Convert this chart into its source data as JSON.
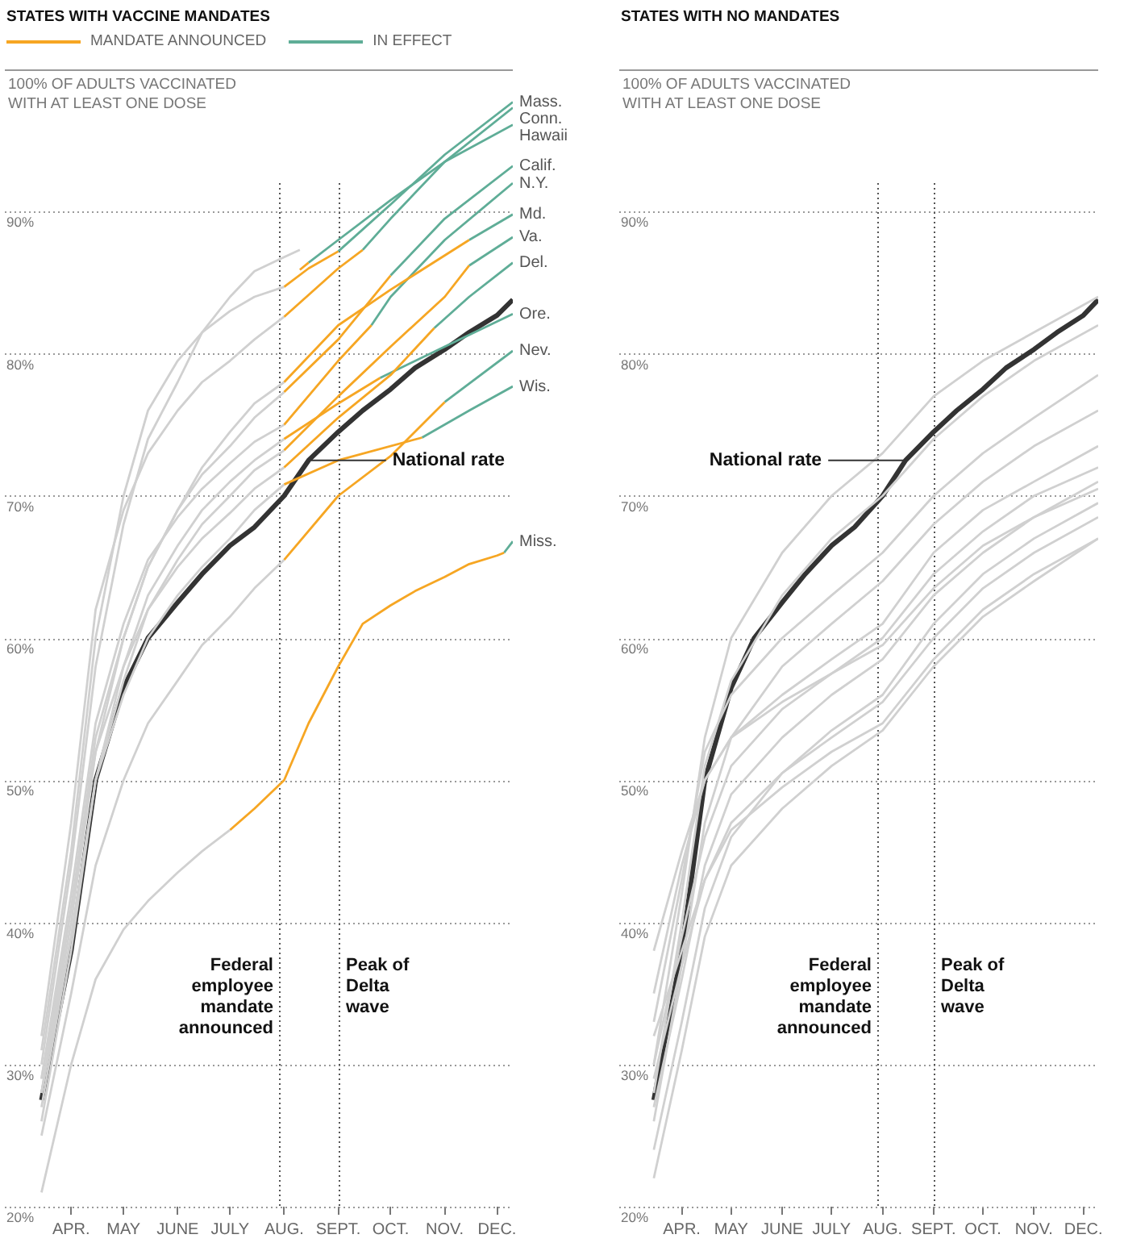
{
  "chart_data": [
    {
      "type": "line",
      "title": "STATES WITH VACCINE MANDATES",
      "ylabel": "100% OF ADULTS VACCINATED WITH AT LEAST ONE DOSE",
      "legend": "top left",
      "grid": "y",
      "xlim": [
        "--02-22",
        "--12-10"
      ],
      "xticks": [
        {
          "value": "--04-01",
          "label": "APR."
        },
        {
          "value": "--05-01",
          "label": "MAY"
        },
        {
          "value": "--06-01",
          "label": "JUNE"
        },
        {
          "value": "--07-01",
          "label": "JULY"
        },
        {
          "value": "--08-01",
          "label": "AUG."
        },
        {
          "value": "--09-01",
          "label": "SEPT."
        },
        {
          "value": "--10-01",
          "label": "OCT."
        },
        {
          "value": "--11-01",
          "label": "NOV."
        },
        {
          "value": "--12-01",
          "label": "DEC."
        }
      ],
      "ylim": [
        20,
        100
      ],
      "yticks": [
        {
          "value": 20,
          "label": "20%"
        },
        {
          "value": 30,
          "label": "30%"
        },
        {
          "value": 40,
          "label": "40%"
        },
        {
          "value": 50,
          "label": "50%"
        },
        {
          "value": 60,
          "label": "60%"
        },
        {
          "value": 70,
          "label": "70%"
        },
        {
          "value": 80,
          "label": "80%"
        },
        {
          "value": 90,
          "label": "90%"
        }
      ],
      "series": [
        {
          "color": "#d0d0d0",
          "x": [
            "--03-15",
            "--04-01",
            "--04-15",
            "--05-01",
            "--05-15",
            "--06-01",
            "--06-15",
            "--07-01",
            "--07-15",
            "--08-01"
          ],
          "values": [
            31,
            45,
            60,
            70,
            76,
            79.5,
            81.5,
            83,
            84,
            84.7
          ]
        },
        {
          "color": "#d0d0d0",
          "x": [
            "--03-15",
            "--04-01",
            "--04-15",
            "--05-01",
            "--05-15",
            "--06-01",
            "--06-15",
            "--07-01",
            "--07-15",
            "--08-01"
          ],
          "values": [
            32,
            47,
            62,
            69,
            73,
            76,
            78,
            79.5,
            81,
            82.6
          ]
        },
        {
          "color": "#d0d0d0",
          "x": [
            "--03-15",
            "--04-01",
            "--04-15",
            "--05-01",
            "--05-15",
            "--06-01",
            "--06-15",
            "--07-01",
            "--07-15",
            "--08-01",
            "--08-10"
          ],
          "values": [
            30,
            44,
            58,
            68,
            74,
            78,
            81.5,
            84,
            85.8,
            86.8,
            87.3
          ]
        },
        {
          "color": "#d0d0d0",
          "x": [
            "--03-15",
            "--04-01",
            "--04-15",
            "--05-01",
            "--05-15",
            "--06-01",
            "--06-15",
            "--07-01",
            "--07-15",
            "--08-01"
          ],
          "values": [
            28,
            40,
            52,
            60,
            65,
            69,
            71.5,
            73.5,
            75.5,
            77.3
          ]
        },
        {
          "color": "#d0d0d0",
          "x": [
            "--03-15",
            "--04-01",
            "--04-15",
            "--05-01",
            "--05-15",
            "--06-01",
            "--06-15",
            "--07-01",
            "--07-15",
            "--08-01"
          ],
          "values": [
            29,
            42,
            54,
            61,
            65.5,
            68.5,
            70.5,
            72.3,
            73.8,
            75
          ]
        },
        {
          "color": "#d0d0d0",
          "x": [
            "--03-15",
            "--04-01",
            "--04-15",
            "--05-01",
            "--05-15",
            "--06-01",
            "--06-15",
            "--07-01",
            "--07-15",
            "--08-01"
          ],
          "values": [
            28,
            41,
            53,
            60,
            65,
            69,
            72,
            74.5,
            76.5,
            78
          ]
        },
        {
          "color": "#d0d0d0",
          "x": [
            "--03-15",
            "--04-01",
            "--04-15",
            "--05-01",
            "--05-15",
            "--06-01",
            "--06-15",
            "--07-01",
            "--07-15",
            "--08-01"
          ],
          "values": [
            27,
            39,
            50,
            57,
            62,
            65.5,
            68,
            70,
            71.8,
            73.2
          ]
        },
        {
          "color": "#d0d0d0",
          "x": [
            "--03-15",
            "--04-01",
            "--04-15",
            "--05-01",
            "--05-15",
            "--06-01",
            "--06-15",
            "--07-01",
            "--07-15",
            "--08-01"
          ],
          "values": [
            29,
            41,
            52,
            58,
            62,
            65,
            67,
            68.8,
            70.5,
            72
          ]
        },
        {
          "color": "#d0d0d0",
          "x": [
            "--03-15",
            "--04-01",
            "--04-15",
            "--05-01",
            "--05-15",
            "--06-01",
            "--06-15",
            "--07-01",
            "--07-15",
            "--08-01"
          ],
          "values": [
            26,
            38,
            50,
            58,
            63,
            66.5,
            69,
            71,
            72.5,
            74
          ]
        },
        {
          "color": "#d0d0d0",
          "x": [
            "--03-15",
            "--04-01",
            "--04-15",
            "--05-01",
            "--05-15",
            "--06-01",
            "--06-15",
            "--07-01",
            "--07-15",
            "--08-01"
          ],
          "values": [
            25,
            35,
            44,
            50,
            54,
            57,
            59.5,
            61.5,
            63.5,
            65.5
          ]
        },
        {
          "color": "#d0d0d0",
          "x": [
            "--03-15",
            "--04-01",
            "--04-15",
            "--05-01",
            "--05-15",
            "--06-01",
            "--06-15",
            "--07-01",
            "--07-15",
            "--08-01"
          ],
          "values": [
            28,
            39,
            50,
            56,
            60,
            63,
            65,
            67,
            69,
            70.8
          ]
        },
        {
          "color": "#d0d0d0",
          "x": [
            "--03-15",
            "--04-01",
            "--04-15",
            "--05-01",
            "--05-15",
            "--06-01",
            "--06-15",
            "--07-01"
          ],
          "values": [
            21,
            30,
            36,
            39.5,
            41.5,
            43.5,
            45,
            46.5
          ]
        },
        {
          "name": "MANDATE ANNOUNCED",
          "color": "#f6a623",
          "x": [
            "--08-01",
            "--08-15",
            "--09-01"
          ],
          "values": [
            84.7,
            86,
            87.2
          ]
        },
        {
          "color": "#f6a623",
          "x": [
            "--08-01",
            "--09-01",
            "--09-15"
          ],
          "values": [
            82.6,
            86,
            87.3
          ]
        },
        {
          "color": "#f6a623",
          "x": [
            "--08-10",
            "--08-15"
          ],
          "values": [
            85.9,
            86.4
          ]
        },
        {
          "color": "#f6a623",
          "x": [
            "--08-01",
            "--09-01",
            "--10-01"
          ],
          "values": [
            77.3,
            81,
            85.5
          ]
        },
        {
          "color": "#f6a623",
          "x": [
            "--08-01",
            "--09-01",
            "--09-20"
          ],
          "values": [
            75,
            79.5,
            82
          ]
        },
        {
          "color": "#f6a623",
          "x": [
            "--08-01",
            "--09-01",
            "--10-01",
            "--11-15"
          ],
          "values": [
            78,
            82,
            84.5,
            88
          ]
        },
        {
          "color": "#f6a623",
          "x": [
            "--08-01",
            "--09-01",
            "--10-01",
            "--11-01",
            "--11-15"
          ],
          "values": [
            73.2,
            77,
            80.5,
            84,
            86.2
          ]
        },
        {
          "color": "#f6a623",
          "x": [
            "--08-01",
            "--09-01",
            "--10-01",
            "--10-26"
          ],
          "values": [
            72,
            75.5,
            78.5,
            81.8
          ]
        },
        {
          "color": "#f6a623",
          "x": [
            "--08-01",
            "--09-01",
            "--09-25"
          ],
          "values": [
            74,
            76.5,
            78.3
          ]
        },
        {
          "color": "#f6a623",
          "x": [
            "--08-01",
            "--09-01",
            "--10-01",
            "--11-01"
          ],
          "values": [
            65.5,
            70,
            72.8,
            76.6
          ]
        },
        {
          "color": "#f6a623",
          "x": [
            "--08-01",
            "--09-01",
            "--10-19"
          ],
          "values": [
            70.8,
            72.5,
            74.1
          ]
        },
        {
          "color": "#f6a623",
          "x": [
            "--07-01",
            "--07-15",
            "--08-01",
            "--08-15",
            "--09-01",
            "--09-15",
            "--10-01",
            "--10-15",
            "--11-01",
            "--11-15",
            "--12-01",
            "--12-05"
          ],
          "values": [
            46.5,
            48,
            50,
            54,
            58,
            61,
            62.3,
            63.3,
            64.3,
            65.2,
            65.8,
            66
          ]
        },
        {
          "name": "IN EFFECT",
          "color": "#5fad97",
          "x": [
            "--09-01",
            "--10-01",
            "--11-01",
            "--12-10"
          ],
          "values": [
            87.2,
            90.5,
            94,
            97.7
          ]
        },
        {
          "color": "#5fad97",
          "x": [
            "--09-15",
            "--10-01",
            "--11-01",
            "--12-10"
          ],
          "values": [
            87.3,
            89.5,
            93.5,
            97.3
          ]
        },
        {
          "color": "#5fad97",
          "x": [
            "--08-15",
            "--09-01",
            "--10-01",
            "--11-01",
            "--12-10"
          ],
          "values": [
            86.4,
            88,
            90.8,
            93.5,
            96.1
          ]
        },
        {
          "color": "#5fad97",
          "x": [
            "--10-01",
            "--11-01",
            "--12-10"
          ],
          "values": [
            85.5,
            89.5,
            93.2
          ]
        },
        {
          "color": "#5fad97",
          "x": [
            "--09-20",
            "--10-01",
            "--11-01",
            "--12-10"
          ],
          "values": [
            82,
            84,
            88,
            92
          ]
        },
        {
          "color": "#5fad97",
          "x": [
            "--11-15",
            "--12-10"
          ],
          "values": [
            88,
            89.8
          ]
        },
        {
          "color": "#5fad97",
          "x": [
            "--11-15",
            "--12-10"
          ],
          "values": [
            86.2,
            88.2
          ]
        },
        {
          "color": "#5fad97",
          "x": [
            "--10-26",
            "--11-15",
            "--12-10"
          ],
          "values": [
            81.8,
            84,
            86.4
          ]
        },
        {
          "color": "#5fad97",
          "x": [
            "--09-25",
            "--11-01",
            "--12-10"
          ],
          "values": [
            78.3,
            80.5,
            82.8
          ]
        },
        {
          "color": "#5fad97",
          "x": [
            "--11-01",
            "--12-10"
          ],
          "values": [
            76.6,
            80.2
          ]
        },
        {
          "color": "#5fad97",
          "x": [
            "--10-19",
            "--11-15",
            "--12-10"
          ],
          "values": [
            74.1,
            76,
            77.7
          ]
        },
        {
          "color": "#5fad97",
          "x": [
            "--12-05",
            "--12-10"
          ],
          "values": [
            66,
            66.8
          ]
        },
        {
          "color": "#333333",
          "x": [
            "--03-15",
            "--04-01",
            "--04-15",
            "--05-01",
            "--05-15",
            "--06-01",
            "--06-15",
            "--07-01",
            "--07-15",
            "--08-01",
            "--08-15",
            "--09-01",
            "--09-15",
            "--10-01",
            "--10-15",
            "--11-01",
            "--11-15",
            "--12-01",
            "--12-10"
          ],
          "values": [
            27.5,
            38,
            50,
            56.5,
            60,
            62.5,
            64.5,
            66.5,
            67.8,
            70,
            72.5,
            74.5,
            76,
            77.5,
            79,
            80.3,
            81.5,
            82.7,
            83.8
          ]
        }
      ],
      "annotations": [
        "National rate",
        {
          "text": "Mass.",
          "x": "--12-10",
          "y": 97.7
        },
        {
          "text": "Conn.",
          "x": "--12-10",
          "y": 97.3
        },
        {
          "text": "Hawaii",
          "x": "--12-10",
          "y": 96.1
        },
        {
          "text": "Calif.",
          "x": "--12-10",
          "y": 93.2
        },
        {
          "text": "N.Y.",
          "x": "--12-10",
          "y": 92
        },
        {
          "text": "Md.",
          "x": "--12-10",
          "y": 89.8
        },
        {
          "text": "Va.",
          "x": "--12-10",
          "y": 88.2
        },
        {
          "text": "Del.",
          "x": "--12-10",
          "y": 86.4
        },
        {
          "text": "Ore.",
          "x": "--12-10",
          "y": 82.8
        },
        {
          "text": "Nev.",
          "x": "--12-10",
          "y": 80.2
        },
        {
          "text": "Wis.",
          "x": "--12-10",
          "y": 77.7
        },
        {
          "text": "Miss.",
          "x": "--12-10",
          "y": 66.8
        }
      ],
      "ref_lines": [
        {
          "axis": "x",
          "value": "--07-29",
          "label": "Federal employee mandate announced",
          "color": "#555555",
          "line_style": "dotted"
        },
        {
          "axis": "x",
          "value": "--09-01",
          "label": "Peak of Delta wave",
          "color": "#555555",
          "line_style": "dotted"
        }
      ]
    },
    {
      "type": "line",
      "title": "STATES WITH NO MANDATES",
      "ylabel": "100% OF ADULTS VACCINATED WITH AT LEAST ONE DOSE",
      "grid": "y",
      "xlim": [
        "--02-22",
        "--12-10"
      ],
      "xticks": [
        {
          "value": "--04-01",
          "label": "APR."
        },
        {
          "value": "--05-01",
          "label": "MAY"
        },
        {
          "value": "--06-01",
          "label": "JUNE"
        },
        {
          "value": "--07-01",
          "label": "JULY"
        },
        {
          "value": "--08-01",
          "label": "AUG."
        },
        {
          "value": "--09-01",
          "label": "SEPT."
        },
        {
          "value": "--10-01",
          "label": "OCT."
        },
        {
          "value": "--11-01",
          "label": "NOV."
        },
        {
          "value": "--12-01",
          "label": "DEC."
        }
      ],
      "ylim": [
        20,
        100
      ],
      "yticks": [
        {
          "value": 20,
          "label": "20%"
        },
        {
          "value": 30,
          "label": "30%"
        },
        {
          "value": 40,
          "label": "40%"
        },
        {
          "value": 50,
          "label": "50%"
        },
        {
          "value": 60,
          "label": "60%"
        },
        {
          "value": 70,
          "label": "70%"
        },
        {
          "value": 80,
          "label": "80%"
        },
        {
          "value": 90,
          "label": "90%"
        }
      ],
      "series": [
        {
          "color": "#d0d0d0",
          "x": [
            "--03-15",
            "--04-01",
            "--04-15",
            "--05-01",
            "--06-01",
            "--07-01",
            "--08-01",
            "--09-01",
            "--10-01",
            "--11-01",
            "--12-10"
          ],
          "values": [
            30,
            42,
            53,
            60,
            66,
            70,
            73,
            77,
            79.5,
            81.5,
            84
          ]
        },
        {
          "color": "#d0d0d0",
          "x": [
            "--03-15",
            "--04-01",
            "--04-15",
            "--05-01",
            "--06-01",
            "--07-01",
            "--08-01",
            "--09-01",
            "--10-01",
            "--11-01",
            "--12-10"
          ],
          "values": [
            28,
            40,
            51,
            57,
            63,
            67,
            70,
            74,
            77,
            79.5,
            82
          ]
        },
        {
          "color": "#d0d0d0",
          "x": [
            "--03-15",
            "--04-01",
            "--04-15",
            "--05-01",
            "--06-01",
            "--07-01",
            "--08-01",
            "--09-01",
            "--10-01",
            "--11-01",
            "--12-10"
          ],
          "values": [
            33,
            43,
            52,
            56,
            60,
            63,
            66,
            70,
            73,
            75.5,
            78.5
          ]
        },
        {
          "color": "#d0d0d0",
          "x": [
            "--03-15",
            "--04-01",
            "--04-15",
            "--05-01",
            "--06-01",
            "--07-01",
            "--08-01",
            "--09-01",
            "--10-01",
            "--11-01",
            "--12-10"
          ],
          "values": [
            26,
            37,
            47,
            53,
            58,
            61,
            64,
            68,
            71,
            73.5,
            76
          ]
        },
        {
          "color": "#d0d0d0",
          "x": [
            "--03-15",
            "--04-01",
            "--04-15",
            "--05-01",
            "--06-01",
            "--07-01",
            "--08-01",
            "--09-01",
            "--10-01",
            "--11-01",
            "--12-10"
          ],
          "values": [
            35,
            44,
            50,
            53,
            56,
            58.5,
            61,
            66,
            69,
            71,
            73.5
          ]
        },
        {
          "color": "#d0d0d0",
          "x": [
            "--03-15",
            "--04-01",
            "--04-15",
            "--05-01",
            "--06-01",
            "--07-01",
            "--08-01",
            "--09-01",
            "--10-01",
            "--11-01",
            "--12-10"
          ],
          "values": [
            30,
            39,
            46,
            51,
            55,
            57.5,
            60,
            64.5,
            67.5,
            70,
            72
          ]
        },
        {
          "color": "#d0d0d0",
          "x": [
            "--03-15",
            "--04-01",
            "--04-15",
            "--05-01",
            "--06-01",
            "--07-01",
            "--08-01",
            "--09-01",
            "--10-01",
            "--11-01",
            "--12-10"
          ],
          "values": [
            27,
            36,
            44,
            49,
            53,
            56,
            58.5,
            63,
            66,
            68.5,
            71
          ]
        },
        {
          "color": "#d0d0d0",
          "x": [
            "--03-15",
            "--04-01",
            "--04-15",
            "--05-01",
            "--06-01",
            "--07-01",
            "--08-01",
            "--09-01",
            "--10-01",
            "--11-01",
            "--12-10"
          ],
          "values": [
            38,
            45,
            50,
            53,
            55.5,
            57.5,
            59.5,
            63.5,
            66.5,
            68.5,
            70.5
          ]
        },
        {
          "color": "#d0d0d0",
          "x": [
            "--03-15",
            "--04-01",
            "--04-15",
            "--05-01",
            "--06-01",
            "--07-01",
            "--08-01",
            "--09-01",
            "--10-01",
            "--11-01",
            "--12-10"
          ],
          "values": [
            24,
            33,
            41,
            46,
            50.5,
            53.5,
            56,
            61,
            64.5,
            67,
            69.5
          ]
        },
        {
          "color": "#d0d0d0",
          "x": [
            "--03-15",
            "--04-01",
            "--04-15",
            "--05-01",
            "--06-01",
            "--07-01",
            "--08-01",
            "--09-01",
            "--10-01",
            "--11-01",
            "--12-10"
          ],
          "values": [
            29,
            37,
            43,
            47,
            50.5,
            53,
            55.5,
            60,
            63.5,
            66,
            68.5
          ]
        },
        {
          "color": "#d0d0d0",
          "x": [
            "--03-15",
            "--04-01",
            "--04-15",
            "--05-01",
            "--06-01",
            "--07-01",
            "--08-01",
            "--09-01",
            "--10-01",
            "--11-01",
            "--12-10"
          ],
          "values": [
            22,
            31,
            39,
            44,
            48,
            51,
            53.5,
            58,
            61.5,
            64,
            67
          ]
        },
        {
          "color": "#d0d0d0",
          "x": [
            "--03-15",
            "--04-01",
            "--04-15",
            "--05-01",
            "--06-01",
            "--07-01",
            "--08-01",
            "--09-01",
            "--10-01",
            "--11-01",
            "--12-10"
          ],
          "values": [
            32,
            38,
            43,
            46.5,
            49.5,
            52,
            54,
            58.5,
            62,
            64.5,
            67
          ]
        },
        {
          "color": "#333333",
          "x": [
            "--03-15",
            "--04-01",
            "--04-15",
            "--05-01",
            "--05-15",
            "--06-01",
            "--06-15",
            "--07-01",
            "--07-15",
            "--08-01",
            "--08-15",
            "--09-01",
            "--09-15",
            "--10-01",
            "--10-15",
            "--11-01",
            "--11-15",
            "--12-01",
            "--12-10"
          ],
          "values": [
            27.5,
            38,
            50,
            56.5,
            60,
            62.5,
            64.5,
            66.5,
            67.8,
            70,
            72.5,
            74.5,
            76,
            77.5,
            79,
            80.3,
            81.5,
            82.7,
            83.8
          ]
        }
      ],
      "annotations": [
        "National rate"
      ],
      "ref_lines": [
        {
          "axis": "x",
          "value": "--07-29",
          "label": "Federal employee mandate announced",
          "color": "#555555",
          "line_style": "dotted"
        },
        {
          "axis": "x",
          "value": "--09-01",
          "label": "Peak of Delta wave",
          "color": "#555555",
          "line_style": "dotted"
        }
      ]
    }
  ]
}
